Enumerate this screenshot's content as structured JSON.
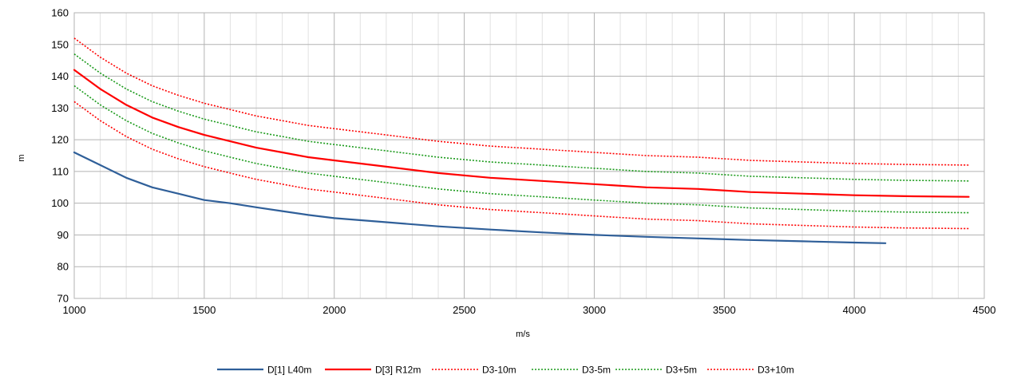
{
  "chart_data": {
    "type": "line",
    "title": "",
    "xlabel": "m/s",
    "ylabel": "m",
    "xlim": [
      1000,
      4500
    ],
    "ylim": [
      70,
      160
    ],
    "xticks": [
      1000,
      1500,
      2000,
      2500,
      3000,
      3500,
      4000,
      4500
    ],
    "yticks": [
      70,
      80,
      90,
      100,
      110,
      120,
      130,
      140,
      150,
      160
    ],
    "xminor_step": 100,
    "grid": true,
    "legend": "bottom",
    "series": [
      {
        "name": "D[1] L40m",
        "color": "#2f5f99",
        "style": "solid",
        "x": [
          1000,
          1100,
          1200,
          1300,
          1400,
          1500,
          1600,
          1700,
          1800,
          1900,
          2000,
          2200,
          2400,
          2600,
          2800,
          3000,
          3200,
          3400,
          3600,
          3800,
          4000,
          4120
        ],
        "y": [
          116,
          112,
          108,
          105,
          103,
          101,
          100,
          98.7,
          97.5,
          96.3,
          95.3,
          94,
          92.7,
          91.7,
          90.8,
          90,
          89.4,
          88.9,
          88.4,
          88,
          87.6,
          87.4
        ]
      },
      {
        "name": "D[3] R12m",
        "color": "#ff0000",
        "style": "solid",
        "x": [
          1000,
          1100,
          1200,
          1300,
          1400,
          1500,
          1600,
          1700,
          1800,
          1900,
          2000,
          2200,
          2400,
          2600,
          2800,
          3000,
          3200,
          3400,
          3600,
          3800,
          4000,
          4200,
          4440
        ],
        "y": [
          142,
          136,
          131,
          127,
          124,
          121.5,
          119.5,
          117.5,
          116,
          114.5,
          113.5,
          111.5,
          109.5,
          108,
          107,
          106,
          105,
          104.5,
          103.5,
          103,
          102.5,
          102.2,
          102
        ]
      },
      {
        "name": "D3-10m",
        "color": "#ff0000",
        "style": "dotted",
        "x": [
          1000,
          1100,
          1200,
          1300,
          1400,
          1500,
          1600,
          1700,
          1800,
          1900,
          2000,
          2200,
          2400,
          2600,
          2800,
          3000,
          3200,
          3400,
          3600,
          3800,
          4000,
          4200,
          4440
        ],
        "y": [
          132,
          126,
          121,
          117,
          114,
          111.5,
          109.5,
          107.5,
          106,
          104.5,
          103.5,
          101.5,
          99.5,
          98,
          97,
          96,
          95,
          94.5,
          93.5,
          93,
          92.5,
          92.2,
          92
        ]
      },
      {
        "name": "D3-5m",
        "color": "#1a9a1a",
        "style": "dotted",
        "x": [
          1000,
          1100,
          1200,
          1300,
          1400,
          1500,
          1600,
          1700,
          1800,
          1900,
          2000,
          2200,
          2400,
          2600,
          2800,
          3000,
          3200,
          3400,
          3600,
          3800,
          4000,
          4200,
          4440
        ],
        "y": [
          137,
          131,
          126,
          122,
          119,
          116.5,
          114.5,
          112.5,
          111,
          109.5,
          108.5,
          106.5,
          104.5,
          103,
          102,
          101,
          100,
          99.5,
          98.5,
          98,
          97.5,
          97.2,
          97
        ]
      },
      {
        "name": "D3+5m",
        "color": "#1a9a1a",
        "style": "dotted",
        "x": [
          1000,
          1100,
          1200,
          1300,
          1400,
          1500,
          1600,
          1700,
          1800,
          1900,
          2000,
          2200,
          2400,
          2600,
          2800,
          3000,
          3200,
          3400,
          3600,
          3800,
          4000,
          4200,
          4440
        ],
        "y": [
          147,
          141,
          136,
          132,
          129,
          126.5,
          124.5,
          122.5,
          121,
          119.5,
          118.5,
          116.5,
          114.5,
          113,
          112,
          111,
          110,
          109.5,
          108.5,
          108,
          107.5,
          107.2,
          107
        ]
      },
      {
        "name": "D3+10m",
        "color": "#ff0000",
        "style": "dotted",
        "x": [
          1000,
          1100,
          1200,
          1300,
          1400,
          1500,
          1600,
          1700,
          1800,
          1900,
          2000,
          2200,
          2400,
          2600,
          2800,
          3000,
          3200,
          3400,
          3600,
          3800,
          4000,
          4200,
          4440
        ],
        "y": [
          152,
          146,
          141,
          137,
          134,
          131.5,
          129.5,
          127.5,
          126,
          124.5,
          123.5,
          121.5,
          119.5,
          118,
          117,
          116,
          115,
          114.5,
          113.5,
          113,
          112.5,
          112.2,
          112
        ]
      }
    ]
  }
}
